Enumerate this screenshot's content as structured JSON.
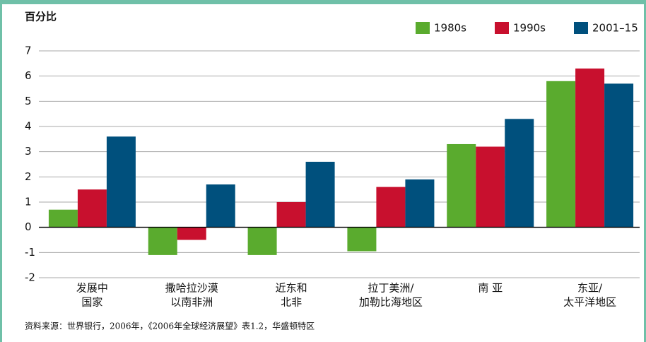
{
  "chart_data": {
    "type": "bar",
    "ylabel": "百分比",
    "categories": [
      [
        "发展中",
        "国家"
      ],
      [
        "撒哈拉沙漠",
        "以南非洲"
      ],
      [
        "近东和",
        "北非"
      ],
      [
        "拉丁美洲/",
        "加勒比海地区"
      ],
      [
        "南 亚"
      ],
      [
        "东亚/",
        "太平洋地区"
      ]
    ],
    "series": [
      {
        "name": "1980s",
        "color": "#5aab2e",
        "values": [
          0.7,
          -1.1,
          -1.1,
          -0.95,
          3.3,
          5.8
        ]
      },
      {
        "name": "1990s",
        "color": "#c8102e",
        "values": [
          1.5,
          -0.5,
          1.0,
          1.6,
          3.2,
          6.3
        ]
      },
      {
        "name": "2001–15",
        "color": "#00507d",
        "values": [
          3.6,
          1.7,
          2.6,
          1.9,
          4.3,
          5.7
        ]
      }
    ],
    "ylim": [
      -2,
      7
    ],
    "yticks": [
      -2,
      -1,
      0,
      1,
      2,
      3,
      4,
      5,
      6,
      7
    ],
    "grid": true,
    "legend": "top-right",
    "source": "资料来源：世界银行，2006年，《2006年全球经济展望》表1.2，华盛顿特区"
  }
}
